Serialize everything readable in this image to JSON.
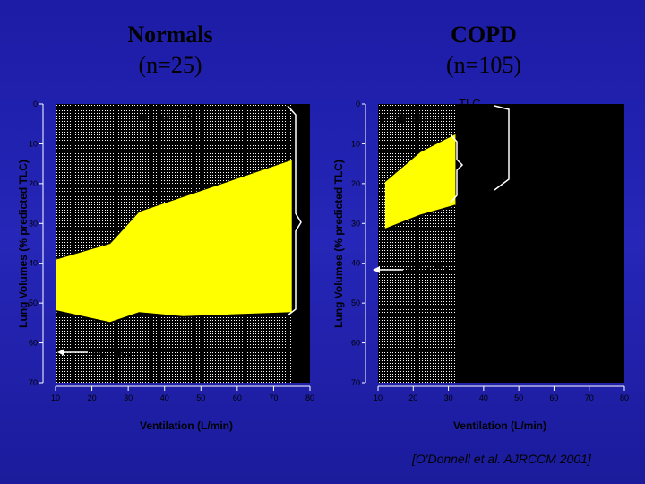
{
  "titles": {
    "left": {
      "main": "Normals",
      "sub": "(n=25)"
    },
    "right": {
      "main": "COPD",
      "sub": "(n=105)"
    }
  },
  "colors": {
    "fill": "#ffff00",
    "plot_bg": "#000000",
    "text": "#000000",
    "annot": "#ffffff"
  },
  "citation": "[O'Donnell et al.  AJRCCM 2001]",
  "chart_data": [
    {
      "type": "area",
      "panel": "Normals",
      "xlabel": "Ventilation (L/min)",
      "ylabel": "Lung Volumes (% predicted TLC)",
      "xlim": [
        10,
        80
      ],
      "ylim": [
        0,
        70
      ],
      "y_inverted": true,
      "xticks": [
        10,
        20,
        30,
        40,
        50,
        60,
        70,
        80
      ],
      "yticks": [
        0,
        10,
        20,
        30,
        40,
        50,
        60,
        70
      ],
      "eilv": {
        "x": [
          10,
          25,
          33,
          75
        ],
        "y": [
          39,
          35,
          27,
          14
        ]
      },
      "eelv": {
        "x": [
          10,
          25,
          33,
          45,
          75
        ],
        "y": [
          52,
          55,
          52.5,
          53.5,
          52.5
        ]
      },
      "annotations": {
        "irv": "minimal IRV",
        "vcrv": "VC / RV"
      }
    },
    {
      "type": "area",
      "panel": "COPD",
      "xlabel": "Ventilation (L/min)",
      "ylabel": "Lung Volumes (% predicted TLC)",
      "xlim": [
        10,
        80
      ],
      "ylim": [
        0,
        70
      ],
      "y_inverted": true,
      "xticks": [
        10,
        20,
        30,
        40,
        50,
        60,
        70,
        80
      ],
      "yticks": [
        0,
        10,
        20,
        30,
        40,
        50,
        60,
        70
      ],
      "eilv": {
        "x": [
          12,
          22,
          32
        ],
        "y": [
          19.5,
          12,
          7.5
        ]
      },
      "eelv": {
        "x": [
          12,
          22,
          32
        ],
        "y": [
          31.5,
          28,
          25.5
        ]
      },
      "annotations": {
        "irv": "minimal IRV",
        "tlc": "TLC",
        "eilv": "EILV",
        "vt": "V",
        "vt_sub": "T",
        "eelv": "EELV",
        "ic": "IC",
        "delta_ic": "∆IC= -0.37±0.04 L",
        "vcrv": "VC / RV"
      }
    }
  ]
}
